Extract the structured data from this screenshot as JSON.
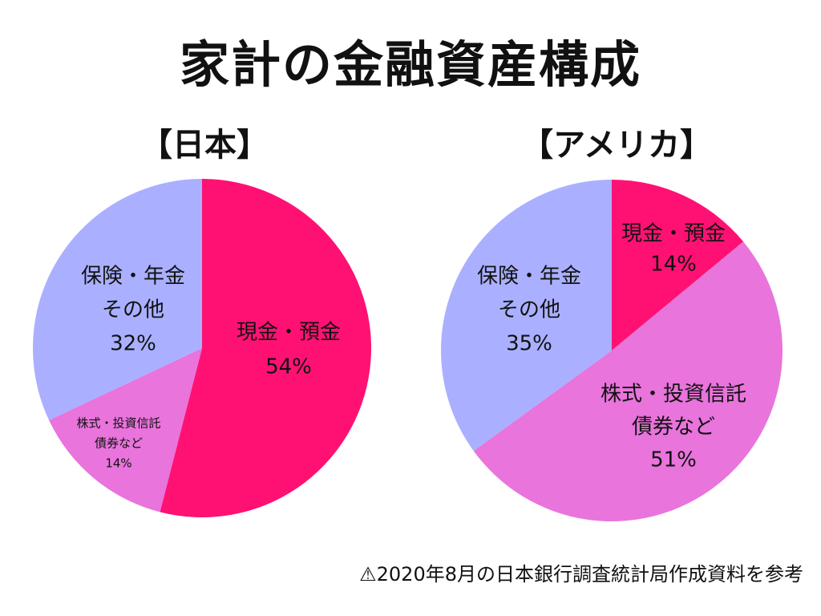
{
  "title": "家計の金融資産構成",
  "note": "⚠2020年8月の日本銀行調査統計局作成資料を参考",
  "colors": {
    "cash": "#FF1174",
    "stocks": "#E874DC",
    "insurance": "#AAB0FF"
  },
  "chart_data": [
    {
      "type": "pie",
      "title": "【日本】",
      "slices": [
        {
          "key": "cash",
          "label": [
            "現金・預金",
            "54%"
          ],
          "value": 54
        },
        {
          "key": "stocks",
          "label": [
            "株式・投資信託",
            "債券など",
            "14%"
          ],
          "value": 14
        },
        {
          "key": "insurance",
          "label": [
            "保険・年金",
            "その他",
            "32%"
          ],
          "value": 32
        }
      ],
      "start": "12 o'clock",
      "direction": "clockwise"
    },
    {
      "type": "pie",
      "title": "【アメリカ】",
      "slices": [
        {
          "key": "cash",
          "label": [
            "現金・預金",
            "14%"
          ],
          "value": 14
        },
        {
          "key": "stocks",
          "label": [
            "株式・投資信託",
            "債券など",
            "51%"
          ],
          "value": 51
        },
        {
          "key": "insurance",
          "label": [
            "保険・年金",
            "その他",
            "35%"
          ],
          "value": 35
        }
      ],
      "start": "12 o'clock",
      "direction": "clockwise"
    }
  ]
}
